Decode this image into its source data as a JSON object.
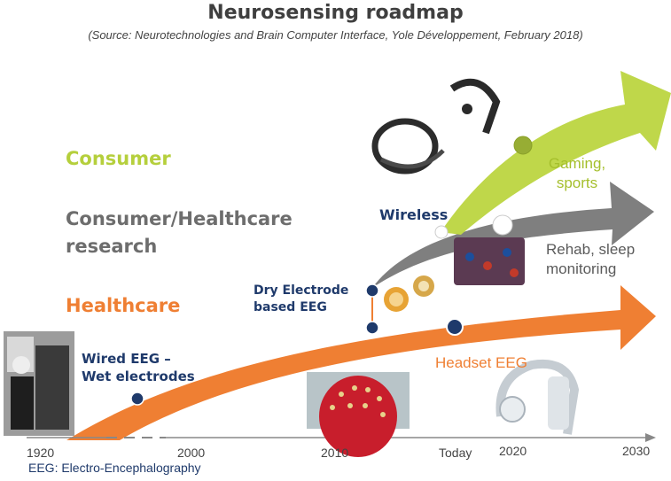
{
  "title": "Neurosensing roadmap",
  "subtitle": "(Source: Neurotechnologies and Brain Computer Interface, Yole Développement, February 2018)",
  "categories": {
    "consumer": "Consumer",
    "research_line1": "Consumer/Healthcare",
    "research_line2": "research",
    "healthcare": "Healthcare"
  },
  "labels": {
    "wired_line1": "Wired  EEG –",
    "wired_line2": "Wet electrodes",
    "dry_line1": "Dry Electrode",
    "dry_line2": "based EEG",
    "wireless": "Wireless",
    "gaming_line1": "Gaming,",
    "gaming_line2": "sports",
    "rehab_line1": "Rehab, sleep",
    "rehab_line2": "monitoring",
    "headset": "Headset EEG"
  },
  "timeline": {
    "ticks": [
      "1920",
      "2000",
      "2010",
      "Today",
      "2020",
      "2030"
    ]
  },
  "note": "EEG: Electro-Encephalography",
  "colors": {
    "consumer": "#b5cf3c",
    "research": "#808080",
    "healthcare": "#ef7f33",
    "navy": "#1f3a6b"
  }
}
